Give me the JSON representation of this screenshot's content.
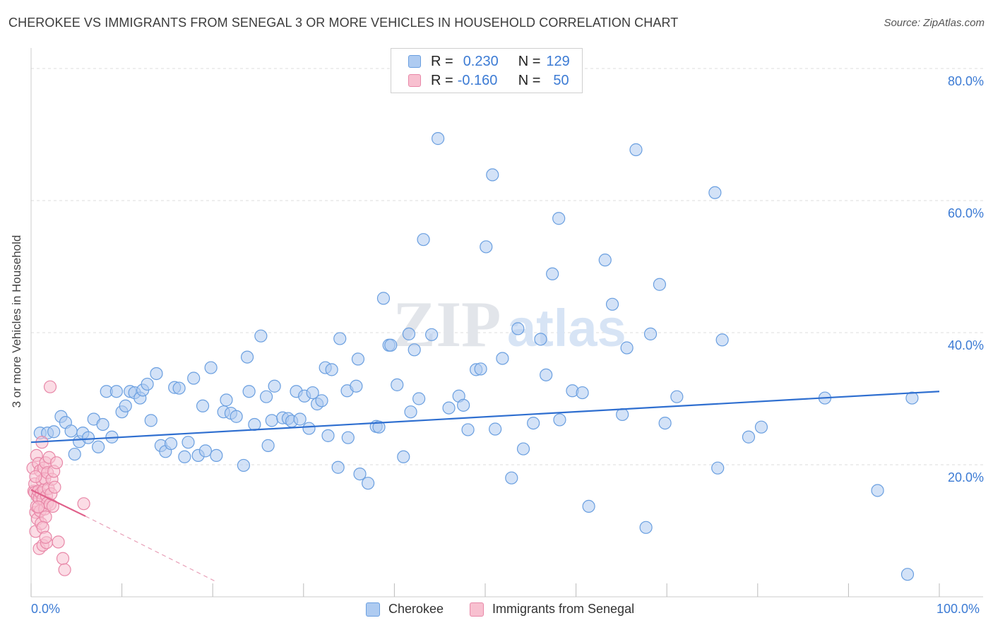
{
  "title": "CHEROKEE VS IMMIGRANTS FROM SENEGAL 3 OR MORE VEHICLES IN HOUSEHOLD CORRELATION CHART",
  "source": "Source: ZipAtlas.com",
  "watermark": {
    "part1": "ZIP",
    "part2": "atlas"
  },
  "legend": {
    "r_label": "R =",
    "n_label": "N =",
    "rows": [
      {
        "r": "0.230",
        "n": "129",
        "color": "#aecbf1",
        "border": "#6a9fe0"
      },
      {
        "r": "-0.160",
        "n": "50",
        "color": "#f8c0d0",
        "border": "#e888a8"
      }
    ]
  },
  "bottom_legend": {
    "series1": "Cherokee",
    "series2": "Immigrants from Senegal"
  },
  "axis": {
    "ylabel": "3 or more Vehicles in Household",
    "x_min_label": "0.0%",
    "x_max_label": "100.0%",
    "y_tick_labels": [
      "20.0%",
      "40.0%",
      "60.0%",
      "80.0%"
    ]
  },
  "chart_data": {
    "type": "scatter",
    "title": "CHEROKEE VS IMMIGRANTS FROM SENEGAL 3 OR MORE VEHICLES IN HOUSEHOLD CORRELATION CHART",
    "xlabel": "",
    "ylabel": "3 or more Vehicles in Household",
    "xlim": [
      0,
      100
    ],
    "ylim": [
      0,
      80
    ],
    "y_ticks": [
      20,
      40,
      60,
      80
    ],
    "grid": true,
    "legend_position": "top-center",
    "series": [
      {
        "name": "Cherokee",
        "color": "#aecbf1",
        "stroke": "#6a9fe0",
        "trend": {
          "x": [
            0,
            100
          ],
          "y": [
            23.4,
            31.1
          ]
        },
        "points": [
          [
            1.0,
            24.8
          ],
          [
            1.8,
            24.8
          ],
          [
            2.5,
            25.0
          ],
          [
            3.3,
            27.3
          ],
          [
            3.8,
            26.4
          ],
          [
            4.4,
            25.1
          ],
          [
            4.8,
            21.6
          ],
          [
            5.3,
            23.5
          ],
          [
            5.7,
            24.8
          ],
          [
            6.3,
            24.1
          ],
          [
            6.9,
            26.9
          ],
          [
            7.4,
            22.7
          ],
          [
            7.9,
            26.1
          ],
          [
            8.3,
            31.1
          ],
          [
            8.9,
            24.2
          ],
          [
            9.4,
            31.1
          ],
          [
            10.0,
            28.0
          ],
          [
            10.4,
            28.9
          ],
          [
            10.9,
            31.1
          ],
          [
            11.4,
            30.9
          ],
          [
            12.0,
            30.1
          ],
          [
            12.3,
            31.3
          ],
          [
            12.8,
            32.2
          ],
          [
            13.2,
            26.7
          ],
          [
            13.8,
            33.8
          ],
          [
            14.3,
            22.9
          ],
          [
            14.8,
            22.0
          ],
          [
            15.4,
            23.2
          ],
          [
            15.8,
            31.7
          ],
          [
            16.3,
            31.6
          ],
          [
            16.9,
            21.2
          ],
          [
            17.3,
            23.4
          ],
          [
            17.9,
            33.1
          ],
          [
            18.4,
            21.4
          ],
          [
            18.9,
            28.9
          ],
          [
            19.2,
            22.1
          ],
          [
            19.8,
            34.7
          ],
          [
            20.4,
            21.4
          ],
          [
            21.2,
            28.0
          ],
          [
            21.5,
            29.8
          ],
          [
            22.0,
            27.8
          ],
          [
            22.6,
            27.3
          ],
          [
            23.4,
            19.9
          ],
          [
            23.8,
            36.3
          ],
          [
            24.0,
            31.1
          ],
          [
            24.6,
            26.1
          ],
          [
            25.3,
            39.5
          ],
          [
            25.9,
            30.3
          ],
          [
            26.1,
            22.9
          ],
          [
            26.5,
            26.7
          ],
          [
            26.8,
            31.9
          ],
          [
            27.7,
            27.1
          ],
          [
            28.3,
            27.0
          ],
          [
            28.7,
            26.6
          ],
          [
            29.2,
            31.1
          ],
          [
            29.6,
            26.9
          ],
          [
            30.1,
            30.4
          ],
          [
            30.6,
            25.5
          ],
          [
            31.0,
            30.9
          ],
          [
            31.5,
            29.2
          ],
          [
            32.0,
            29.7
          ],
          [
            32.4,
            34.7
          ],
          [
            32.7,
            24.4
          ],
          [
            33.1,
            34.4
          ],
          [
            33.8,
            19.6
          ],
          [
            34.0,
            39.1
          ],
          [
            34.9,
            24.1
          ],
          [
            34.8,
            31.2
          ],
          [
            35.8,
            31.9
          ],
          [
            36.0,
            36.0
          ],
          [
            36.2,
            18.6
          ],
          [
            37.1,
            17.2
          ],
          [
            38.0,
            25.8
          ],
          [
            38.3,
            25.7
          ],
          [
            38.8,
            45.2
          ],
          [
            39.4,
            38.1
          ],
          [
            39.6,
            38.1
          ],
          [
            40.3,
            32.1
          ],
          [
            41.0,
            21.2
          ],
          [
            41.6,
            39.8
          ],
          [
            41.8,
            28.0
          ],
          [
            42.2,
            37.4
          ],
          [
            42.7,
            30.0
          ],
          [
            43.2,
            54.1
          ],
          [
            44.1,
            39.7
          ],
          [
            44.8,
            69.4
          ],
          [
            46.0,
            28.6
          ],
          [
            47.1,
            30.4
          ],
          [
            47.6,
            29.0
          ],
          [
            48.1,
            25.3
          ],
          [
            49.0,
            34.4
          ],
          [
            49.5,
            34.5
          ],
          [
            50.1,
            53.0
          ],
          [
            50.8,
            63.9
          ],
          [
            51.1,
            25.4
          ],
          [
            51.9,
            36.1
          ],
          [
            52.9,
            18.0
          ],
          [
            53.6,
            40.6
          ],
          [
            54.2,
            22.4
          ],
          [
            55.3,
            26.3
          ],
          [
            56.1,
            39.0
          ],
          [
            56.7,
            33.6
          ],
          [
            57.4,
            48.9
          ],
          [
            58.1,
            57.3
          ],
          [
            58.2,
            26.8
          ],
          [
            59.6,
            31.2
          ],
          [
            60.7,
            30.9
          ],
          [
            61.4,
            13.7
          ],
          [
            63.2,
            51.0
          ],
          [
            64.0,
            44.3
          ],
          [
            65.1,
            27.6
          ],
          [
            65.6,
            37.7
          ],
          [
            66.6,
            67.7
          ],
          [
            67.7,
            10.5
          ],
          [
            68.2,
            39.8
          ],
          [
            69.2,
            47.3
          ],
          [
            69.8,
            26.3
          ],
          [
            71.1,
            30.3
          ],
          [
            75.3,
            61.2
          ],
          [
            75.6,
            19.5
          ],
          [
            76.1,
            38.9
          ],
          [
            79.0,
            24.2
          ],
          [
            80.4,
            25.7
          ],
          [
            87.4,
            30.1
          ],
          [
            93.2,
            16.1
          ],
          [
            96.5,
            3.4
          ],
          [
            97.0,
            30.1
          ]
        ]
      },
      {
        "name": "Immigrants from Senegal",
        "color": "#f8c0d0",
        "stroke": "#e888a8",
        "trend": {
          "x": [
            0,
            6.0
          ],
          "y": [
            16.2,
            12.2
          ],
          "dashed_to": [
            20.5,
            2.2
          ]
        },
        "points": [
          [
            0.2,
            19.5
          ],
          [
            0.3,
            16.0
          ],
          [
            0.4,
            17.1
          ],
          [
            0.4,
            15.8
          ],
          [
            0.5,
            12.8
          ],
          [
            0.5,
            9.9
          ],
          [
            0.6,
            13.7
          ],
          [
            0.6,
            21.4
          ],
          [
            0.7,
            15.2
          ],
          [
            0.7,
            11.8
          ],
          [
            0.8,
            20.2
          ],
          [
            0.8,
            16.0
          ],
          [
            0.9,
            14.9
          ],
          [
            0.9,
            7.3
          ],
          [
            1.0,
            19.1
          ],
          [
            1.0,
            13.0
          ],
          [
            1.1,
            15.7
          ],
          [
            1.1,
            11.1
          ],
          [
            1.2,
            23.4
          ],
          [
            1.2,
            17.6
          ],
          [
            1.3,
            14.8
          ],
          [
            1.3,
            7.8
          ],
          [
            1.4,
            19.5
          ],
          [
            1.4,
            16.2
          ],
          [
            1.5,
            13.3
          ],
          [
            1.5,
            17.9
          ],
          [
            1.6,
            20.3
          ],
          [
            1.6,
            12.1
          ],
          [
            1.7,
            15.3
          ],
          [
            1.7,
            8.2
          ],
          [
            1.8,
            14.2
          ],
          [
            1.8,
            18.8
          ],
          [
            1.9,
            16.4
          ],
          [
            2.0,
            21.1
          ],
          [
            2.1,
            14.0
          ],
          [
            2.2,
            15.6
          ],
          [
            2.3,
            17.8
          ],
          [
            2.4,
            13.7
          ],
          [
            2.5,
            19.0
          ],
          [
            2.1,
            31.8
          ],
          [
            2.6,
            16.6
          ],
          [
            2.8,
            20.3
          ],
          [
            3.0,
            8.3
          ],
          [
            3.5,
            5.8
          ],
          [
            3.7,
            4.1
          ],
          [
            5.8,
            14.1
          ],
          [
            0.5,
            18.2
          ],
          [
            1.3,
            10.5
          ],
          [
            0.8,
            13.6
          ],
          [
            1.6,
            9.0
          ]
        ]
      }
    ]
  }
}
